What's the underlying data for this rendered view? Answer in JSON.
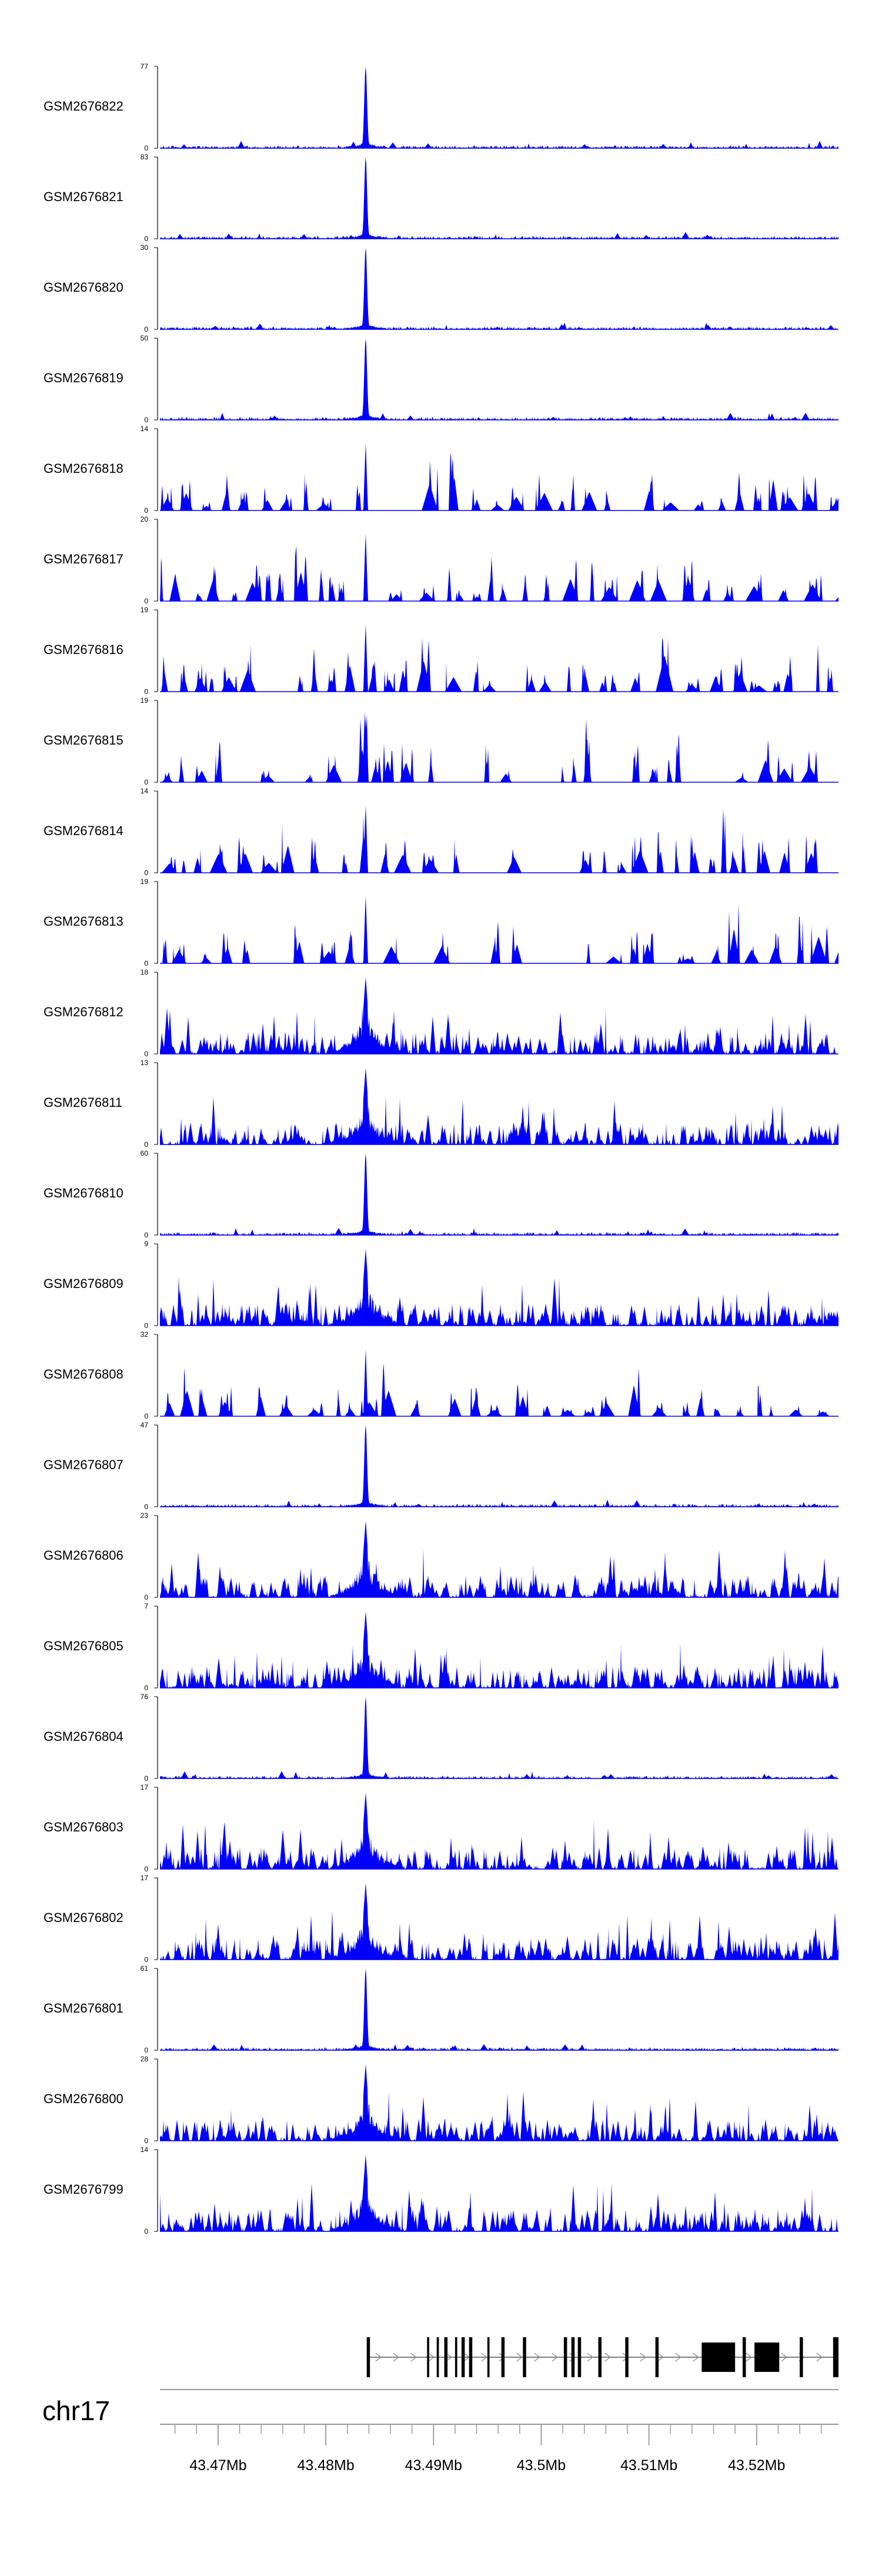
{
  "colors": {
    "signal": "#0000ff",
    "axis": "#000000",
    "genome_axis": "#999999",
    "gene": "#000000"
  },
  "chart_data": {
    "type": "area",
    "chromosome": "chr17",
    "xlim": [
      43.4646,
      43.5276
    ],
    "x_unit": "Mb",
    "x_ticks": [
      43.47,
      43.48,
      43.49,
      43.5,
      43.51,
      43.52
    ],
    "x_tick_labels": [
      "43.47Mb",
      "43.48Mb",
      "43.49Mb",
      "43.5Mb",
      "43.51Mb",
      "43.52Mb"
    ],
    "minor_tick_step": 0.002,
    "peak_position": 43.4837,
    "tracks": [
      {
        "name": "GSM2676822",
        "ymin": 0,
        "ymax": 77,
        "profile": "sharp"
      },
      {
        "name": "GSM2676821",
        "ymin": 0,
        "ymax": 83,
        "profile": "sharp"
      },
      {
        "name": "GSM2676820",
        "ymin": 0,
        "ymax": 30,
        "profile": "sharp"
      },
      {
        "name": "GSM2676819",
        "ymin": 0,
        "ymax": 50,
        "profile": "sharp"
      },
      {
        "name": "GSM2676818",
        "ymin": 0,
        "ymax": 14,
        "profile": "sparse"
      },
      {
        "name": "GSM2676817",
        "ymin": 0,
        "ymax": 20,
        "profile": "sparse"
      },
      {
        "name": "GSM2676816",
        "ymin": 0,
        "ymax": 19,
        "profile": "sparse"
      },
      {
        "name": "GSM2676815",
        "ymin": 0,
        "ymax": 19,
        "profile": "sparse"
      },
      {
        "name": "GSM2676814",
        "ymin": 0,
        "ymax": 14,
        "profile": "sparse"
      },
      {
        "name": "GSM2676813",
        "ymin": 0,
        "ymax": 19,
        "profile": "sparse"
      },
      {
        "name": "GSM2676812",
        "ymin": 0,
        "ymax": 18,
        "profile": "dense"
      },
      {
        "name": "GSM2676811",
        "ymin": 0,
        "ymax": 13,
        "profile": "dense"
      },
      {
        "name": "GSM2676810",
        "ymin": 0,
        "ymax": 60,
        "profile": "sharp"
      },
      {
        "name": "GSM2676809",
        "ymin": 0,
        "ymax": 9,
        "profile": "dense"
      },
      {
        "name": "GSM2676808",
        "ymin": 0,
        "ymax": 32,
        "profile": "sparse"
      },
      {
        "name": "GSM2676807",
        "ymin": 0,
        "ymax": 47,
        "profile": "sharp"
      },
      {
        "name": "GSM2676806",
        "ymin": 0,
        "ymax": 23,
        "profile": "dense"
      },
      {
        "name": "GSM2676805",
        "ymin": 0,
        "ymax": 7,
        "profile": "dense"
      },
      {
        "name": "GSM2676804",
        "ymin": 0,
        "ymax": 76,
        "profile": "sharp"
      },
      {
        "name": "GSM2676803",
        "ymin": 0,
        "ymax": 17,
        "profile": "dense"
      },
      {
        "name": "GSM2676802",
        "ymin": 0,
        "ymax": 17,
        "profile": "dense"
      },
      {
        "name": "GSM2676801",
        "ymin": 0,
        "ymax": 61,
        "profile": "sharp"
      },
      {
        "name": "GSM2676800",
        "ymin": 0,
        "ymax": 28,
        "profile": "dense"
      },
      {
        "name": "GSM2676799",
        "ymin": 0,
        "ymax": 14,
        "profile": "dense"
      }
    ],
    "gene": {
      "start": 43.4838,
      "end": 43.5276,
      "strand": "+",
      "exons": [
        [
          43.4838,
          43.4841
        ],
        [
          43.4894,
          43.4896
        ],
        [
          43.4903,
          43.4905
        ],
        [
          43.491,
          43.4913
        ],
        [
          43.492,
          43.4922
        ],
        [
          43.4926,
          43.4929
        ],
        [
          43.4933,
          43.4936
        ],
        [
          43.495,
          43.4952
        ],
        [
          43.4963,
          43.4966
        ],
        [
          43.4983,
          43.4986
        ],
        [
          43.5021,
          43.5024
        ],
        [
          43.5028,
          43.5031
        ],
        [
          43.5034,
          43.5037
        ],
        [
          43.5053,
          43.5056
        ],
        [
          43.5078,
          43.5081
        ],
        [
          43.5106,
          43.5109
        ],
        [
          43.5149,
          43.518
        ],
        [
          43.5187,
          43.519
        ],
        [
          43.5198,
          43.5221
        ],
        [
          43.524,
          43.5243
        ],
        [
          43.5271,
          43.5276
        ]
      ]
    }
  }
}
